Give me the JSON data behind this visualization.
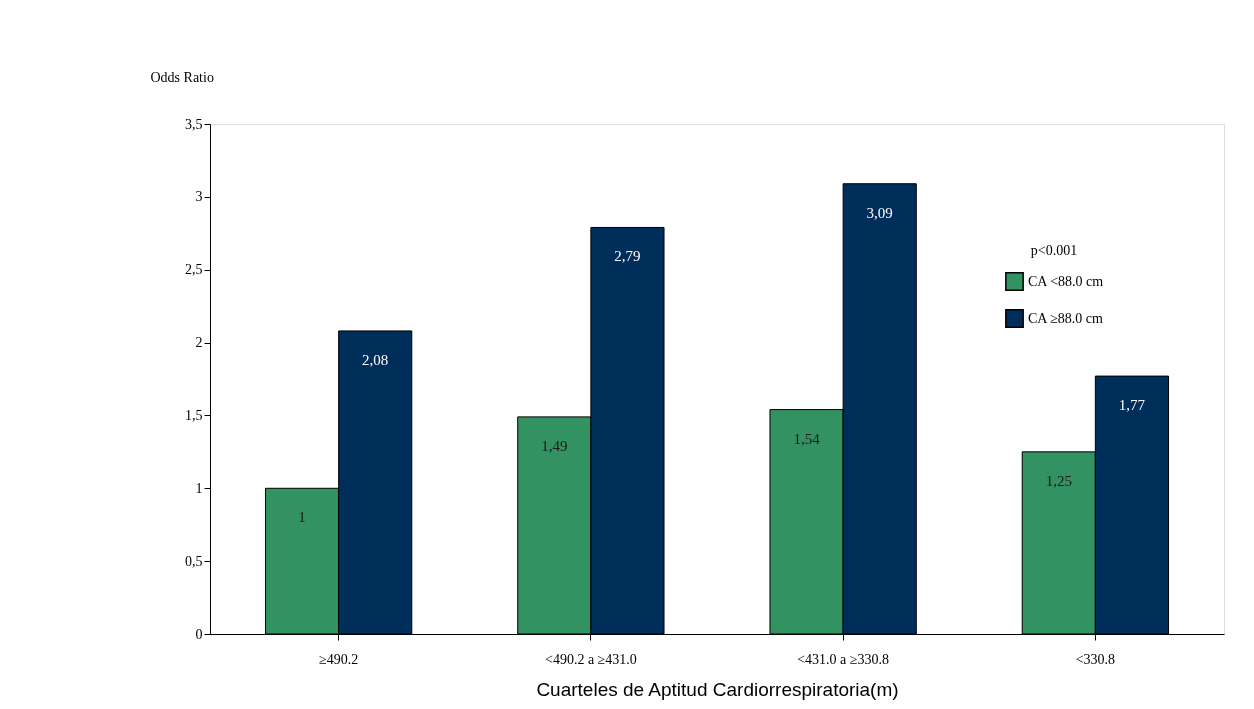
{
  "chart_data": {
    "type": "bar",
    "xlabel": "Cuarteles de Aptitud Cardiorrespiratoria(m)",
    "ylabel": "Odds Ratio",
    "legend_title": "p<0.001",
    "categories": [
      "≥490.2",
      "<490.2 a ≥431.0",
      "<431.0 a ≥330.8",
      "<330.8"
    ],
    "series": [
      {
        "name": "CA <88.0 cm",
        "color": "#339262",
        "values": [
          1,
          1.49,
          1.54,
          1.25
        ],
        "value_labels": [
          "1",
          "1,49",
          "1,54",
          "1,25"
        ]
      },
      {
        "name": "CA ≥88.0 cm",
        "color": "#002e5b",
        "values": [
          2.08,
          2.79,
          3.09,
          1.77
        ],
        "value_labels": [
          "2,08",
          "2,79",
          "3,09",
          "1,77"
        ]
      }
    ],
    "ylim": [
      0,
      3.5
    ],
    "yticks": [
      0,
      {
        "value": 0.5,
        "label": "0,5"
      },
      1,
      {
        "value": 1.5,
        "label": "1,5"
      },
      2,
      {
        "value": 2.5,
        "label": "2,5"
      },
      3,
      {
        "value": 3.5,
        "label": "3,5"
      }
    ],
    "grid": false,
    "legend": "top right"
  }
}
